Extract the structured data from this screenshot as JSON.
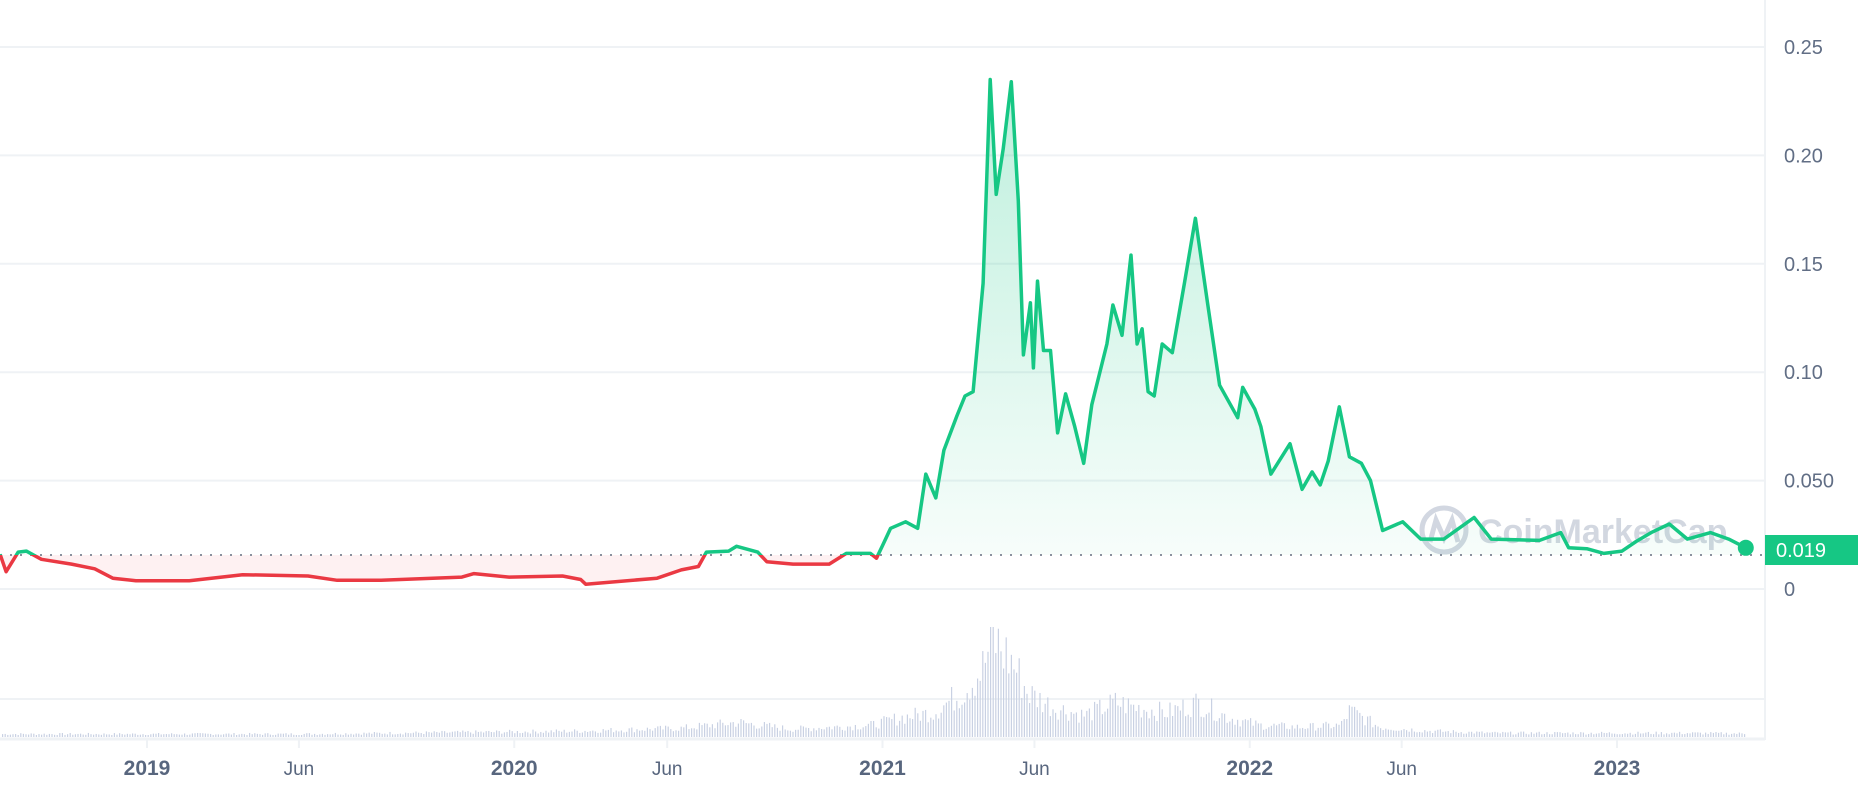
{
  "chart_data": {
    "type": "area",
    "title": "",
    "xlabel": "",
    "ylabel": "",
    "ylim": [
      0,
      0.26
    ],
    "y_ticks": [
      "0",
      "0.050",
      "0.10",
      "0.15",
      "0.20",
      "0.25"
    ],
    "y_tick_values": [
      0,
      0.05,
      0.1,
      0.15,
      0.2,
      0.25
    ],
    "x_ticks": [
      {
        "label": "2019",
        "date": "2019-01-01",
        "major": true
      },
      {
        "label": "Jun",
        "date": "2019-06-01",
        "major": false
      },
      {
        "label": "2020",
        "date": "2020-01-01",
        "major": true
      },
      {
        "label": "Jun",
        "date": "2020-06-01",
        "major": false
      },
      {
        "label": "2021",
        "date": "2021-01-01",
        "major": true
      },
      {
        "label": "Jun",
        "date": "2021-06-01",
        "major": false
      },
      {
        "label": "2022",
        "date": "2022-01-01",
        "major": true
      },
      {
        "label": "Jun",
        "date": "2022-06-01",
        "major": false
      },
      {
        "label": "2023",
        "date": "2023-01-01",
        "major": true
      }
    ],
    "grid": true,
    "reference_price": 0.0157,
    "current_price_label": "0.019",
    "colors": {
      "up": "#16c784",
      "down": "#ea3943",
      "volume": "#c9d1e3",
      "grid": "#eff2f5",
      "axis_text": "#58667e"
    },
    "watermark": "CoinMarketCap",
    "price": {
      "dates": [
        "2018-08-08",
        "2018-08-14",
        "2018-08-26",
        "2018-09-03",
        "2018-09-18",
        "2018-10-18",
        "2018-11-10",
        "2018-11-28",
        "2018-12-21",
        "2019-02-12",
        "2019-04-06",
        "2019-06-10",
        "2019-07-09",
        "2019-08-20",
        "2019-11-10",
        "2019-11-22",
        "2019-12-27",
        "2020-02-18",
        "2020-03-07",
        "2020-03-12",
        "2020-05-22",
        "2020-06-15",
        "2020-07-02",
        "2020-07-10",
        "2020-08-01",
        "2020-08-09",
        "2020-08-30",
        "2020-09-08",
        "2020-10-04",
        "2020-11-09",
        "2020-11-26",
        "2020-12-20",
        "2020-12-26",
        "2021-01-01",
        "2021-01-09",
        "2021-01-24",
        "2021-02-05",
        "2021-02-13",
        "2021-02-23",
        "2021-03-03",
        "2021-03-16",
        "2021-03-24",
        "2021-04-01",
        "2021-04-11",
        "2021-04-18",
        "2021-04-24",
        "2021-05-01",
        "2021-05-09",
        "2021-05-16",
        "2021-05-21",
        "2021-05-28",
        "2021-05-31",
        "2021-06-04",
        "2021-06-10",
        "2021-06-17",
        "2021-06-24",
        "2021-07-02",
        "2021-07-11",
        "2021-07-20",
        "2021-07-28",
        "2021-08-12",
        "2021-08-18",
        "2021-08-27",
        "2021-09-05",
        "2021-09-11",
        "2021-09-16",
        "2021-09-22",
        "2021-09-28",
        "2021-10-06",
        "2021-10-16",
        "2021-10-28",
        "2021-11-08",
        "2021-11-20",
        "2021-12-02",
        "2021-12-20",
        "2021-12-25",
        "2022-01-06",
        "2022-01-12",
        "2022-01-22",
        "2022-02-10",
        "2022-02-22",
        "2022-03-04",
        "2022-03-12",
        "2022-03-20",
        "2022-03-31",
        "2022-04-10",
        "2022-04-22",
        "2022-05-01",
        "2022-05-13",
        "2022-06-02",
        "2022-06-20",
        "2022-07-13",
        "2022-08-12",
        "2022-08-29",
        "2022-10-16",
        "2022-11-06",
        "2022-11-14",
        "2022-12-02",
        "2022-12-19",
        "2023-01-06",
        "2023-01-20",
        "2023-02-04",
        "2023-02-22",
        "2023-03-12",
        "2023-04-04",
        "2023-04-22",
        "2023-05-09"
      ],
      "values": [
        0.016,
        0.008,
        0.017,
        0.0175,
        0.0137,
        0.0115,
        0.0093,
        0.005,
        0.0038,
        0.0038,
        0.0066,
        0.006,
        0.004,
        0.004,
        0.0055,
        0.0071,
        0.0055,
        0.006,
        0.0044,
        0.0022,
        0.005,
        0.0088,
        0.0104,
        0.017,
        0.0175,
        0.0197,
        0.017,
        0.0126,
        0.0115,
        0.0115,
        0.0164,
        0.0164,
        0.0142,
        0.02,
        0.028,
        0.031,
        0.028,
        0.053,
        0.042,
        0.064,
        0.08,
        0.089,
        0.091,
        0.141,
        0.235,
        0.182,
        0.203,
        0.234,
        0.179,
        0.108,
        0.132,
        0.102,
        0.142,
        0.11,
        0.11,
        0.072,
        0.09,
        0.075,
        0.058,
        0.085,
        0.113,
        0.131,
        0.117,
        0.154,
        0.113,
        0.12,
        0.091,
        0.089,
        0.113,
        0.109,
        0.141,
        0.171,
        0.132,
        0.094,
        0.079,
        0.093,
        0.083,
        0.075,
        0.053,
        0.067,
        0.046,
        0.054,
        0.048,
        0.059,
        0.084,
        0.061,
        0.058,
        0.05,
        0.027,
        0.031,
        0.023,
        0.023,
        0.033,
        0.023,
        0.0224,
        0.026,
        0.019,
        0.0186,
        0.0164,
        0.0175,
        0.0219,
        0.026,
        0.03,
        0.023,
        0.026,
        0.023,
        0.019
      ]
    },
    "volume_relative": {
      "dates": [
        "2018-08-08",
        "2019-06-01",
        "2019-12-01",
        "2020-03-01",
        "2020-06-15",
        "2020-08-10",
        "2020-10-01",
        "2020-12-20",
        "2021-01-20",
        "2021-02-20",
        "2021-03-20",
        "2021-04-10",
        "2021-04-20",
        "2021-05-10",
        "2021-05-25",
        "2021-06-20",
        "2021-07-20",
        "2021-08-20",
        "2021-09-10",
        "2021-10-10",
        "2021-11-10",
        "2021-12-10",
        "2022-01-10",
        "2022-02-20",
        "2022-04-01",
        "2022-04-10",
        "2022-05-10",
        "2022-07-01",
        "2022-09-01",
        "2022-11-10",
        "2022-12-15",
        "2023-03-01",
        "2023-05-09"
      ],
      "values": [
        0.03,
        0.03,
        0.05,
        0.06,
        0.09,
        0.15,
        0.08,
        0.12,
        0.2,
        0.25,
        0.45,
        0.7,
        1.0,
        0.75,
        0.45,
        0.3,
        0.22,
        0.35,
        0.3,
        0.25,
        0.35,
        0.2,
        0.12,
        0.1,
        0.12,
        0.27,
        0.1,
        0.06,
        0.04,
        0.04,
        0.04,
        0.04,
        0.035
      ]
    }
  }
}
